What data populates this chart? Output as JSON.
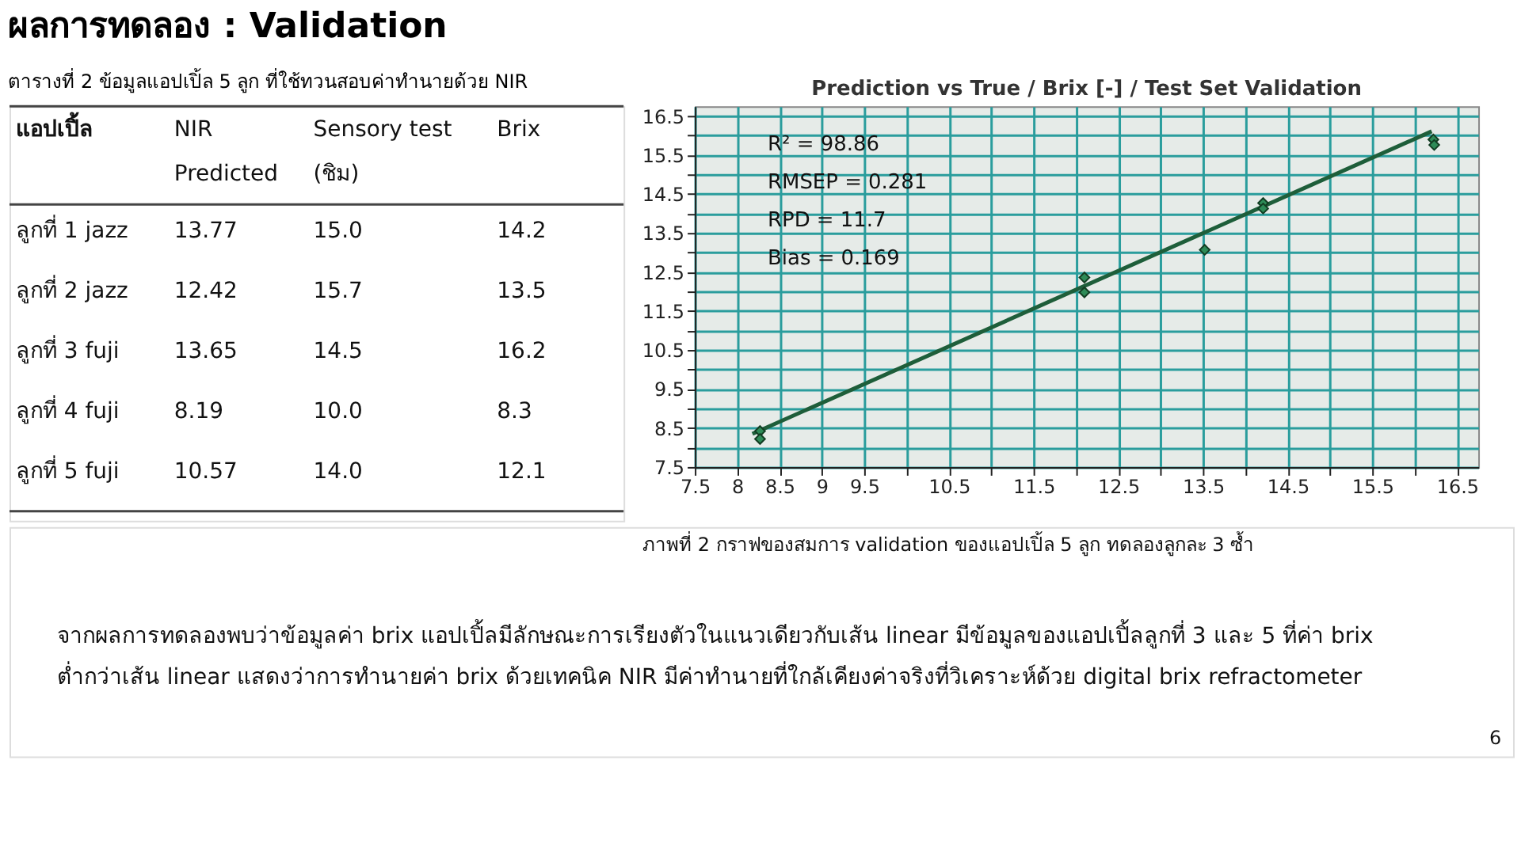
{
  "chart_data": [
    {
      "type": "other",
      "title": "ผลการทดลอง : Validation",
      "subtitle": "ตารางที่ 2 ข้อมูลแอปเปิ้ล 5 ลูก ที่ใช้ทวนสอบค่าทำนายด้วย NIR",
      "annotations": [
        "แอปเปิ้ล",
        "NIR\nPredicted",
        "Sensory test\n(ชิม)",
        "Brix",
        "ลูกที่ 1 jazz",
        "13.77",
        "15.0",
        "14.2",
        "ลูกที่ 2 jazz",
        "12.42",
        "15.7",
        "13.5",
        "ลูกที่ 3 fuji",
        "13.65",
        "14.5",
        "16.2",
        "ลูกที่ 4 fuji",
        "8.19",
        "10.0",
        "8.3",
        "ลูกที่ 5 fuji",
        "10.57",
        "14.0",
        "12.1"
      ]
    },
    {
      "type": "scatter",
      "title": "Prediction vs True  /  Brix [-]  /  Test Set Validation",
      "marker": "diamond",
      "grid": true,
      "xlim": [
        7.5,
        16.75
      ],
      "ylim": [
        7.5,
        16.75
      ],
      "xticks": [
        7.5,
        8,
        8.5,
        9,
        9.5,
        {
          "value": 10,
          "label": null
        },
        10.5,
        {
          "value": 11,
          "label": null
        },
        11.5,
        {
          "value": 12,
          "label": null
        },
        12.5,
        {
          "value": 13,
          "label": null
        },
        13.5,
        {
          "value": 14,
          "label": null
        },
        14.5,
        {
          "value": 15,
          "label": null
        },
        15.5,
        {
          "value": 16,
          "label": null
        },
        16.5
      ],
      "yticks": [
        7.5,
        {
          "value": 8,
          "label": null
        },
        8.5,
        {
          "value": 9,
          "label": null
        },
        9.5,
        {
          "value": 10,
          "label": null
        },
        10.5,
        {
          "value": 11,
          "label": null
        },
        11.5,
        {
          "value": 12,
          "label": null
        },
        12.5,
        {
          "value": 13,
          "label": null
        },
        13.5,
        {
          "value": 14,
          "label": null
        },
        14.5,
        {
          "value": 15,
          "label": null
        },
        15.5,
        {
          "value": 16,
          "label": null
        },
        16.5
      ],
      "annotations": [
        "R² = 98.86",
        "RMSEP = 0.281",
        "RPD = 11.7",
        "Bias = 0.169"
      ],
      "series": [
        {
          "type": "line",
          "color": "#1e5e3a",
          "marker": "none",
          "x": [
            8.18,
            16.2
          ],
          "values": [
            8.35,
            16.11
          ]
        },
        {
          "type": "scatter",
          "color": "#2e8b57",
          "x": [
            8.27,
            8.27,
            12.1,
            12.1,
            13.52,
            14.21,
            14.21,
            16.22,
            16.23
          ],
          "values": [
            8.42,
            8.22,
            12.36,
            11.98,
            13.07,
            14.27,
            14.13,
            15.9,
            15.76
          ]
        }
      ]
    },
    {
      "type": "other",
      "annotations": [
        "ภาพที่ 2 กราฟของสมการ validation ของแอปเปิ้ล 5 ลูก ทดลองลูกละ 3 ซ้ำ",
        "จากผลการทดลองพบว่าข้อมูลค่า brix แอปเปิ้ลมีลักษณะการเรียงตัวในแนวเดียวกับเส้น linear มีข้อมูลของแอปเปิ้ลลูกที่ 3 และ 5 ที่ค่า brix",
        "ต่ำกว่าเส้น linear แสดงว่าการทำนายค่า brix ด้วยเทคนิค NIR มีค่าทำนายที่ใกล้เคียงค่าจริงที่วิเคราะห์ด้วย digital brix refractometer",
        "6"
      ]
    }
  ]
}
